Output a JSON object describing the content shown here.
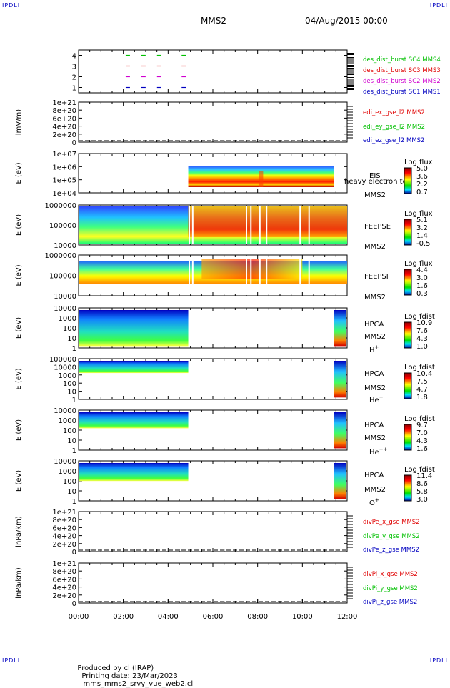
{
  "corner_tag": "IPDLI",
  "title": {
    "left": "MMS2",
    "right": "04/Aug/2015 00:00"
  },
  "footer": {
    "produced": "Produced by cl (IRAP)",
    "date": "Printing date: 23/Mar/2023",
    "file": "mms_mms2_srvy_vue_web2.cl"
  },
  "x_axis": {
    "ticks": [
      "00:00",
      "02:00",
      "04:00",
      "06:00",
      "08:00",
      "10:00",
      "12:00"
    ],
    "range_hours": [
      0,
      12
    ]
  },
  "colors": {
    "red": "#e00000",
    "green": "#00c000",
    "blue": "#0000c0",
    "magenta": "#d000d0",
    "frame": "#000000"
  },
  "chart_data": [
    {
      "type": "line",
      "ylabel": "",
      "yticks": [
        "1",
        "2",
        "3",
        "4"
      ],
      "ylim": [
        0.5,
        4.5
      ],
      "series": [
        {
          "name": "des_dist_burst SC1 MMS1",
          "color": "#0000c0",
          "level": 1,
          "marks_hours": [
            2.2,
            2.9,
            3.6,
            4.7
          ]
        },
        {
          "name": "des_dist_burst SC2 MMS2",
          "color": "#d000d0",
          "level": 2,
          "marks_hours": [
            2.2,
            2.9,
            3.6,
            4.7
          ]
        },
        {
          "name": "des_dist_burst SC3 MMS3",
          "color": "#e00000",
          "level": 3,
          "marks_hours": [
            2.2,
            2.9,
            3.6,
            4.7
          ]
        },
        {
          "name": "des_dist_burst SC4 MMS4",
          "color": "#00c000",
          "level": 4,
          "marks_hours": [
            2.2,
            2.9,
            3.6,
            4.7
          ]
        }
      ]
    },
    {
      "type": "line",
      "ylabel": "lmV/m)",
      "yticks": [
        "0",
        "2e+20",
        "4e+20",
        "6e+20",
        "8e+20",
        "1e+21"
      ],
      "ylim": [
        0,
        1e+21
      ],
      "series": [
        {
          "name": "edi_ex_gse_l2 MMS2",
          "color": "#e00000"
        },
        {
          "name": "edi_ey_gse_l2 MMS2",
          "color": "#00c000"
        },
        {
          "name": "edi_ez_gse_l2 MMS2",
          "color": "#0000c0"
        }
      ]
    },
    {
      "type": "heatmap",
      "ylabel": "E (eV)",
      "yticks": [
        "1e+04",
        "1e+05",
        "1e+06",
        "1e+07"
      ],
      "ylim": [
        10000,
        10000000
      ],
      "coverage_hours": [
        4.9,
        11.4
      ],
      "labels": [
        "EIS",
        "heavy electron to",
        "MMS2"
      ],
      "colorbar": {
        "title": "Log flux",
        "ticks": [
          "5.0",
          "3.6",
          "2.2",
          "0.7"
        ]
      }
    },
    {
      "type": "heatmap",
      "ylabel": "E (eV)",
      "yticks": [
        "10000",
        "100000",
        "1000000"
      ],
      "ylim": [
        10000,
        1000000
      ],
      "coverage_hours": [
        0,
        12
      ],
      "labels": [
        "FEEPSE",
        "MMS2"
      ],
      "colorbar": {
        "title": "Log flux",
        "ticks": [
          "5.1",
          "3.2",
          "1.4",
          "-0.5"
        ]
      }
    },
    {
      "type": "heatmap",
      "ylabel": "E (eV)",
      "yticks": [
        "10000",
        "100000",
        "1000000"
      ],
      "ylim": [
        10000,
        1000000
      ],
      "coverage_hours": [
        0,
        12
      ],
      "labels": [
        "FEEPSI",
        "MMS2"
      ],
      "colorbar": {
        "title": "Log flux",
        "ticks": [
          "4.4",
          "3.0",
          "1.6",
          "0.3"
        ]
      }
    },
    {
      "type": "heatmap",
      "ylabel": "E (eV)",
      "yticks": [
        "1",
        "10",
        "100",
        "1000",
        "10000"
      ],
      "ylim": [
        1,
        40000
      ],
      "coverage_hours": [
        [
          0,
          4.9
        ],
        [
          11.4,
          12
        ]
      ],
      "labels": [
        "HPCA",
        "MMS2"
      ],
      "species": "H",
      "charge": "+",
      "colorbar": {
        "title": "Log fdist",
        "ticks": [
          "10.9",
          "7.6",
          "4.3",
          "1.0"
        ]
      }
    },
    {
      "type": "heatmap",
      "ylabel": "E (eV)",
      "yticks": [
        "1",
        "10",
        "100",
        "1000",
        "10000",
        "100000"
      ],
      "ylim": [
        1,
        100000
      ],
      "coverage_hours": [
        [
          0,
          4.9
        ],
        [
          11.4,
          12
        ]
      ],
      "labels": [
        "HPCA",
        "MMS2"
      ],
      "species": "He",
      "charge": "+",
      "colorbar": {
        "title": "Log fdist",
        "ticks": [
          "10.4",
          "7.5",
          "4.7",
          "1.8"
        ]
      }
    },
    {
      "type": "heatmap",
      "ylabel": "E (eV)",
      "yticks": [
        "1",
        "10",
        "100",
        "1000",
        "10000"
      ],
      "ylim": [
        1,
        40000
      ],
      "coverage_hours": [
        [
          0,
          4.9
        ],
        [
          11.4,
          12
        ]
      ],
      "labels": [
        "HPCA",
        "MMS2"
      ],
      "species": "He",
      "charge": "++",
      "colorbar": {
        "title": "Log fdist",
        "ticks": [
          "9.7",
          "7.0",
          "4.3",
          "1.6"
        ]
      }
    },
    {
      "type": "heatmap",
      "ylabel": "E (eV)",
      "yticks": [
        "1",
        "10",
        "100",
        "1000",
        "10000"
      ],
      "ylim": [
        1,
        40000
      ],
      "coverage_hours": [
        [
          0,
          4.9
        ],
        [
          11.4,
          12
        ]
      ],
      "labels": [
        "HPCA",
        "MMS2"
      ],
      "species": "O",
      "charge": "+",
      "colorbar": {
        "title": "Log fdist",
        "ticks": [
          "11.4",
          "8.6",
          "5.8",
          "3.0"
        ]
      }
    },
    {
      "type": "line",
      "ylabel": "lnPa/km)",
      "yticks": [
        "0",
        "2e+20",
        "4e+20",
        "6e+20",
        "8e+20",
        "1e+21"
      ],
      "ylim": [
        0,
        1e+21
      ],
      "series": [
        {
          "name": "divPe_x_gse MMS2",
          "color": "#e00000"
        },
        {
          "name": "divPe_y_gse MMS2",
          "color": "#00c000"
        },
        {
          "name": "divPe_z_gse MMS2",
          "color": "#0000c0"
        }
      ]
    },
    {
      "type": "line",
      "ylabel": "lnPa/km)",
      "yticks": [
        "0",
        "2e+20",
        "4e+20",
        "6e+20",
        "8e+20",
        "1e+21"
      ],
      "ylim": [
        0,
        1e+21
      ],
      "series": [
        {
          "name": "divPi_x_gse MMS2",
          "color": "#e00000"
        },
        {
          "name": "divPi_y_gse MMS2",
          "color": "#00c000"
        },
        {
          "name": "divPi_z_gse MMS2",
          "color": "#0000c0"
        }
      ]
    }
  ]
}
